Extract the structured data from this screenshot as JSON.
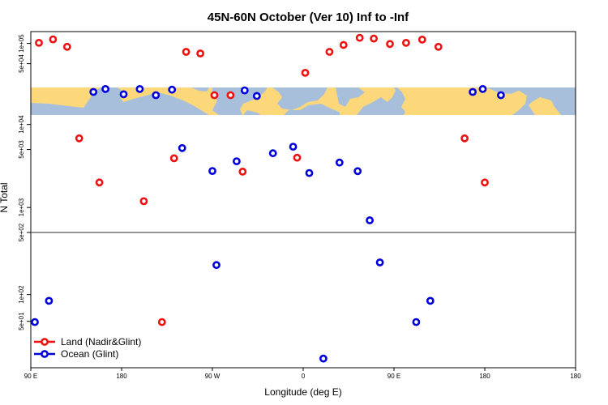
{
  "chart_data": {
    "type": "scatter",
    "title": "45N-60N October (Ver 10)   Inf to -Inf",
    "xlabel": "Longitude (deg E)",
    "ylabel": "N Total",
    "xlim": [
      -90,
      180
    ],
    "x_wrap_note": "x axis runs from 90E eastward through 180, 90W, 0, 90E and ends at 180",
    "x_ticks": [
      {
        "value": -90,
        "label": "90 E"
      },
      {
        "value": -45,
        "label": "180"
      },
      {
        "value": 0,
        "label": "90 W"
      },
      {
        "value": 45,
        "label": "0"
      },
      {
        "value": 90,
        "label": "90 E"
      },
      {
        "value": 135,
        "label": "180"
      }
    ],
    "panels": [
      {
        "name": "upper",
        "ylim": [
          30000,
          150000
        ],
        "scale": "log",
        "y_ticks": [
          {
            "value": 50000,
            "label": "5e+04"
          },
          {
            "value": 100000,
            "label": "1e+05"
          }
        ],
        "has_map_strip": true
      },
      {
        "name": "middle",
        "ylim": [
          500,
          13000
        ],
        "scale": "log",
        "y_ticks": [
          {
            "value": 500,
            "label": "5e+02"
          },
          {
            "value": 1000,
            "label": "1e+03"
          },
          {
            "value": 5000,
            "label": "5e+03"
          },
          {
            "value": 10000,
            "label": "1e+04"
          }
        ]
      },
      {
        "name": "lower",
        "ylim": [
          15,
          500
        ],
        "scale": "log",
        "y_ticks": [
          {
            "value": 50,
            "label": "5e+01"
          },
          {
            "value": 100,
            "label": "1e+02"
          }
        ]
      }
    ],
    "series": [
      {
        "name": "Land (Nadir&Glint)",
        "color": "#ee1111",
        "points": [
          {
            "x": -86,
            "panel": "upper",
            "y": 102000
          },
          {
            "x": -79,
            "panel": "upper",
            "y": 115000
          },
          {
            "x": -72,
            "panel": "upper",
            "y": 89000
          },
          {
            "x": -66,
            "panel": "middle",
            "y": 6800
          },
          {
            "x": -56,
            "panel": "middle",
            "y": 2000
          },
          {
            "x": -34,
            "panel": "middle",
            "y": 1190
          },
          {
            "x": -25,
            "panel": "lower",
            "y": 49
          },
          {
            "x": -19,
            "panel": "middle",
            "y": 3920
          },
          {
            "x": -13,
            "panel": "upper",
            "y": 75000
          },
          {
            "x": -6,
            "panel": "upper",
            "y": 71000
          },
          {
            "x": 1,
            "panel": "upper",
            "y": 17000
          },
          {
            "x": 9,
            "panel": "upper",
            "y": 17000
          },
          {
            "x": 15,
            "panel": "middle",
            "y": 2700
          },
          {
            "x": 42,
            "panel": "middle",
            "y": 3980
          },
          {
            "x": 46,
            "panel": "upper",
            "y": 36500
          },
          {
            "x": 58,
            "panel": "upper",
            "y": 75000
          },
          {
            "x": 65,
            "panel": "upper",
            "y": 95000
          },
          {
            "x": 73,
            "panel": "upper",
            "y": 121000
          },
          {
            "x": 80,
            "panel": "upper",
            "y": 118000
          },
          {
            "x": 88,
            "panel": "upper",
            "y": 98000
          },
          {
            "x": 96,
            "panel": "upper",
            "y": 102000
          },
          {
            "x": 104,
            "panel": "upper",
            "y": 114000
          },
          {
            "x": 112,
            "panel": "upper",
            "y": 89000
          },
          {
            "x": 125,
            "panel": "middle",
            "y": 6800
          },
          {
            "x": 135,
            "panel": "middle",
            "y": 2000
          }
        ]
      },
      {
        "name": "Ocean (Glint)",
        "color": "#0000dd",
        "points": [
          {
            "x": -88,
            "panel": "lower",
            "y": 49
          },
          {
            "x": -81,
            "panel": "lower",
            "y": 85
          },
          {
            "x": -59,
            "panel": "upper",
            "y": 19000
          },
          {
            "x": -53,
            "panel": "upper",
            "y": 21000
          },
          {
            "x": -44,
            "panel": "upper",
            "y": 17500
          },
          {
            "x": -36,
            "panel": "upper",
            "y": 21000
          },
          {
            "x": -28,
            "panel": "upper",
            "y": 17000
          },
          {
            "x": -20,
            "panel": "upper",
            "y": 20500
          },
          {
            "x": -15,
            "panel": "middle",
            "y": 5200
          },
          {
            "x": 0,
            "panel": "middle",
            "y": 2750
          },
          {
            "x": 2,
            "panel": "lower",
            "y": 215
          },
          {
            "x": 12,
            "panel": "middle",
            "y": 3600
          },
          {
            "x": 16,
            "panel": "upper",
            "y": 20000
          },
          {
            "x": 22,
            "panel": "upper",
            "y": 16500
          },
          {
            "x": 30,
            "panel": "middle",
            "y": 4500
          },
          {
            "x": 40,
            "panel": "middle",
            "y": 5400
          },
          {
            "x": 48,
            "panel": "middle",
            "y": 2600
          },
          {
            "x": 55,
            "panel": "lower",
            "y": 19
          },
          {
            "x": 63,
            "panel": "middle",
            "y": 3480
          },
          {
            "x": 72,
            "panel": "middle",
            "y": 2740
          },
          {
            "x": 78,
            "panel": "middle",
            "y": 700
          },
          {
            "x": 83,
            "panel": "lower",
            "y": 230
          },
          {
            "x": 101,
            "panel": "lower",
            "y": 49
          },
          {
            "x": 108,
            "panel": "lower",
            "y": 85
          },
          {
            "x": 129,
            "panel": "upper",
            "y": 19000
          },
          {
            "x": 134,
            "panel": "upper",
            "y": 21000
          },
          {
            "x": 143,
            "panel": "upper",
            "y": 17000
          }
        ]
      }
    ],
    "legend": {
      "position": "bottom-left"
    },
    "grid": false
  },
  "colors": {
    "ocean": "#a8bfdc",
    "land": "#fcd87a",
    "land_marker": "#ee1111",
    "ocean_marker": "#0000dd"
  }
}
